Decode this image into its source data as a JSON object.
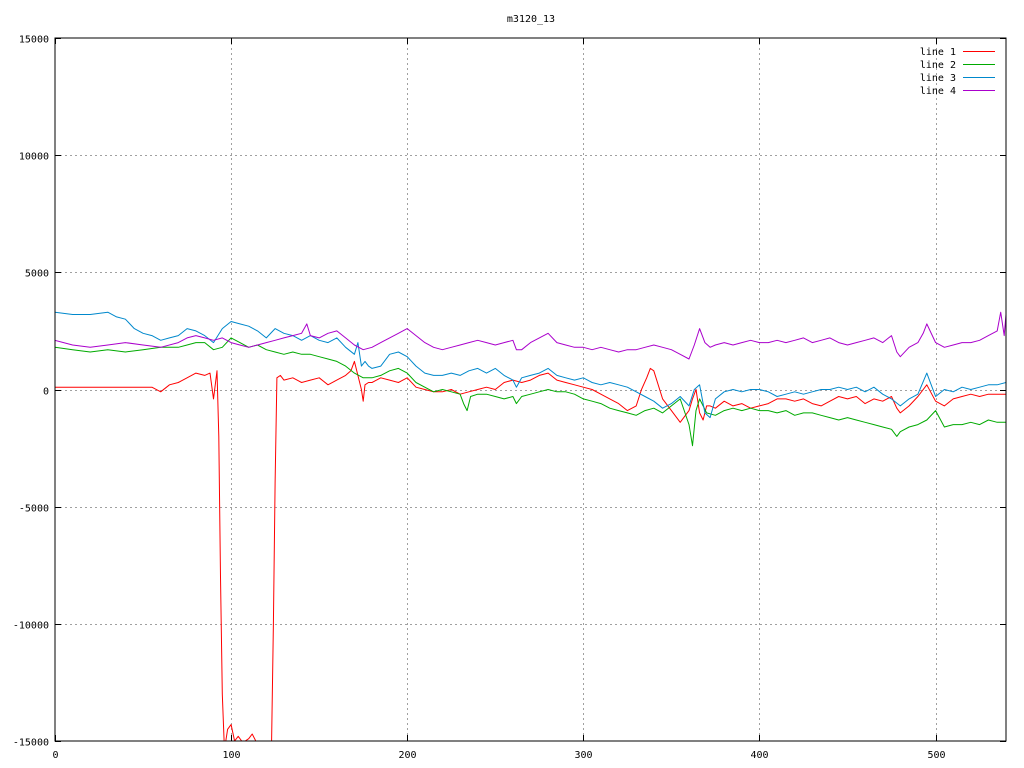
{
  "chart_data": {
    "type": "line",
    "title": "m3120_13",
    "xlabel": "",
    "ylabel": "",
    "xlim": [
      0,
      540
    ],
    "ylim": [
      -15000,
      15000
    ],
    "xticks": [
      0,
      100,
      200,
      300,
      400,
      500
    ],
    "yticks": [
      -15000,
      -10000,
      -5000,
      0,
      5000,
      10000,
      15000
    ],
    "grid": true,
    "legend_position": "top-right",
    "series": [
      {
        "name": "line 1",
        "color": "#ff0000",
        "x": [
          0,
          20,
          40,
          55,
          60,
          65,
          70,
          75,
          80,
          85,
          88,
          90,
          92,
          93,
          94,
          95,
          96,
          97,
          98,
          100,
          102,
          104,
          106,
          108,
          110,
          112,
          114,
          116,
          118,
          120,
          122,
          123,
          124,
          125,
          126,
          128,
          130,
          135,
          140,
          145,
          150,
          155,
          160,
          165,
          168,
          170,
          172,
          174,
          175,
          176,
          178,
          180,
          185,
          190,
          195,
          200,
          205,
          210,
          215,
          220,
          225,
          230,
          235,
          240,
          245,
          250,
          255,
          260,
          265,
          270,
          275,
          280,
          285,
          290,
          295,
          300,
          305,
          310,
          315,
          320,
          325,
          330,
          333,
          336,
          338,
          340,
          345,
          350,
          355,
          360,
          362,
          364,
          366,
          368,
          370,
          372,
          375,
          380,
          385,
          390,
          395,
          400,
          405,
          410,
          415,
          420,
          425,
          430,
          435,
          440,
          445,
          450,
          455,
          460,
          465,
          470,
          475,
          478,
          480,
          485,
          490,
          495,
          500,
          505,
          510,
          515,
          520,
          525,
          530,
          535,
          540
        ],
        "y": [
          100,
          100,
          100,
          100,
          -100,
          200,
          300,
          500,
          700,
          600,
          700,
          -400,
          800,
          -2000,
          -8000,
          -13000,
          -15000,
          -15000,
          -14500,
          -14300,
          -15000,
          -14800,
          -15000,
          -15000,
          -14900,
          -14700,
          -15000,
          -15000,
          -15000,
          -15000,
          -15000,
          -15000,
          -10000,
          -4000,
          500,
          600,
          400,
          500,
          300,
          400,
          500,
          200,
          400,
          600,
          800,
          1200,
          600,
          0,
          -500,
          200,
          300,
          300,
          500,
          400,
          300,
          500,
          100,
          0,
          -100,
          -100,
          0,
          -200,
          -100,
          0,
          100,
          0,
          300,
          400,
          300,
          400,
          600,
          700,
          400,
          300,
          200,
          100,
          0,
          -200,
          -400,
          -600,
          -900,
          -700,
          0,
          500,
          900,
          800,
          -400,
          -900,
          -1400,
          -900,
          -400,
          0,
          -1000,
          -1300,
          -700,
          -700,
          -800,
          -500,
          -700,
          -600,
          -800,
          -700,
          -600,
          -400,
          -400,
          -500,
          -400,
          -600,
          -700,
          -500,
          -300,
          -400,
          -300,
          -600,
          -400,
          -500,
          -300,
          -800,
          -1000,
          -700,
          -300,
          200,
          -500,
          -700,
          -400,
          -300,
          -200,
          -300,
          -200,
          -200,
          -200
        ]
      },
      {
        "name": "line 2",
        "color": "#00aa00",
        "x": [
          0,
          10,
          20,
          30,
          40,
          50,
          60,
          70,
          75,
          80,
          85,
          90,
          95,
          100,
          105,
          110,
          115,
          120,
          125,
          130,
          135,
          140,
          145,
          150,
          155,
          160,
          165,
          170,
          175,
          180,
          185,
          190,
          195,
          200,
          205,
          210,
          215,
          220,
          225,
          230,
          232,
          234,
          236,
          240,
          245,
          250,
          255,
          260,
          262,
          265,
          270,
          275,
          280,
          285,
          290,
          295,
          300,
          305,
          310,
          315,
          320,
          325,
          330,
          335,
          340,
          345,
          350,
          355,
          360,
          362,
          364,
          366,
          368,
          370,
          375,
          380,
          385,
          390,
          395,
          400,
          405,
          410,
          415,
          420,
          425,
          430,
          435,
          440,
          445,
          450,
          455,
          460,
          465,
          470,
          475,
          478,
          480,
          485,
          490,
          495,
          500,
          505,
          510,
          515,
          520,
          525,
          530,
          535,
          540
        ],
        "y": [
          1800,
          1700,
          1600,
          1700,
          1600,
          1700,
          1800,
          1800,
          1900,
          2000,
          2000,
          1700,
          1800,
          2200,
          2000,
          1800,
          1900,
          1700,
          1600,
          1500,
          1600,
          1500,
          1500,
          1400,
          1300,
          1200,
          1000,
          700,
          500,
          500,
          600,
          800,
          900,
          700,
          300,
          100,
          -100,
          0,
          -100,
          -200,
          -600,
          -900,
          -300,
          -200,
          -200,
          -300,
          -400,
          -300,
          -600,
          -300,
          -200,
          -100,
          0,
          -100,
          -100,
          -200,
          -400,
          -500,
          -600,
          -800,
          -900,
          -1000,
          -1100,
          -900,
          -800,
          -1000,
          -700,
          -400,
          -1500,
          -2400,
          -900,
          -400,
          -700,
          -1000,
          -1100,
          -900,
          -800,
          -900,
          -800,
          -900,
          -900,
          -1000,
          -900,
          -1100,
          -1000,
          -1000,
          -1100,
          -1200,
          -1300,
          -1200,
          -1300,
          -1400,
          -1500,
          -1600,
          -1700,
          -2000,
          -1800,
          -1600,
          -1500,
          -1300,
          -900,
          -1600,
          -1500,
          -1500,
          -1400,
          -1500,
          -1300,
          -1400,
          -1400
        ]
      },
      {
        "name": "line 3",
        "color": "#0088cc",
        "x": [
          0,
          10,
          20,
          30,
          35,
          40,
          45,
          50,
          55,
          60,
          65,
          70,
          75,
          80,
          85,
          90,
          95,
          100,
          105,
          110,
          115,
          120,
          125,
          130,
          135,
          140,
          145,
          150,
          155,
          160,
          165,
          170,
          172,
          174,
          176,
          178,
          180,
          185,
          190,
          195,
          200,
          205,
          210,
          215,
          220,
          225,
          230,
          235,
          240,
          245,
          250,
          255,
          260,
          262,
          265,
          270,
          275,
          280,
          285,
          290,
          295,
          300,
          305,
          310,
          315,
          320,
          325,
          330,
          335,
          340,
          345,
          350,
          355,
          360,
          363,
          366,
          369,
          372,
          375,
          380,
          385,
          390,
          395,
          400,
          405,
          410,
          415,
          420,
          425,
          430,
          435,
          440,
          445,
          450,
          455,
          460,
          465,
          470,
          475,
          480,
          485,
          490,
          495,
          500,
          505,
          510,
          515,
          520,
          525,
          530,
          535,
          540
        ],
        "y": [
          3300,
          3200,
          3200,
          3300,
          3100,
          3000,
          2600,
          2400,
          2300,
          2100,
          2200,
          2300,
          2600,
          2500,
          2300,
          2000,
          2600,
          2900,
          2800,
          2700,
          2500,
          2200,
          2600,
          2400,
          2300,
          2100,
          2300,
          2100,
          2000,
          2200,
          1800,
          1500,
          2000,
          1000,
          1200,
          1000,
          900,
          1000,
          1500,
          1600,
          1400,
          1000,
          700,
          600,
          600,
          700,
          600,
          800,
          900,
          700,
          900,
          600,
          400,
          100,
          500,
          600,
          700,
          900,
          600,
          500,
          400,
          500,
          300,
          200,
          300,
          200,
          100,
          -100,
          -300,
          -500,
          -800,
          -600,
          -300,
          -700,
          0,
          200,
          -1000,
          -1200,
          -400,
          -100,
          0,
          -100,
          0,
          0,
          -100,
          -300,
          -200,
          -100,
          -200,
          -100,
          0,
          0,
          100,
          0,
          100,
          -100,
          100,
          -200,
          -400,
          -700,
          -400,
          -200,
          700,
          -300,
          0,
          -100,
          100,
          0,
          100,
          200,
          200,
          300
        ]
      },
      {
        "name": "line 4",
        "color": "#aa00cc",
        "x": [
          0,
          10,
          20,
          30,
          40,
          50,
          60,
          70,
          75,
          80,
          85,
          90,
          95,
          100,
          105,
          110,
          115,
          120,
          125,
          130,
          135,
          140,
          143,
          145,
          150,
          155,
          160,
          165,
          170,
          175,
          180,
          185,
          190,
          195,
          200,
          205,
          210,
          215,
          220,
          225,
          230,
          235,
          240,
          245,
          250,
          255,
          260,
          262,
          265,
          270,
          275,
          280,
          285,
          290,
          295,
          300,
          305,
          310,
          315,
          320,
          325,
          330,
          335,
          340,
          345,
          350,
          355,
          360,
          363,
          366,
          369,
          372,
          375,
          380,
          385,
          390,
          395,
          400,
          405,
          410,
          415,
          420,
          425,
          430,
          435,
          440,
          445,
          450,
          455,
          460,
          465,
          470,
          475,
          478,
          480,
          485,
          490,
          493,
          495,
          500,
          505,
          510,
          515,
          520,
          525,
          530,
          535,
          537,
          539,
          540
        ],
        "y": [
          2100,
          1900,
          1800,
          1900,
          2000,
          1900,
          1800,
          2000,
          2200,
          2300,
          2200,
          2100,
          2200,
          2000,
          1900,
          1800,
          1900,
          2000,
          2100,
          2200,
          2300,
          2400,
          2800,
          2300,
          2200,
          2400,
          2500,
          2200,
          1900,
          1700,
          1800,
          2000,
          2200,
          2400,
          2600,
          2300,
          2000,
          1800,
          1700,
          1800,
          1900,
          2000,
          2100,
          2000,
          1900,
          2000,
          2100,
          1700,
          1700,
          2000,
          2200,
          2400,
          2000,
          1900,
          1800,
          1800,
          1700,
          1800,
          1700,
          1600,
          1700,
          1700,
          1800,
          1900,
          1800,
          1700,
          1500,
          1300,
          1900,
          2600,
          2000,
          1800,
          1900,
          2000,
          1900,
          2000,
          2100,
          2000,
          2000,
          2100,
          2000,
          2100,
          2200,
          2000,
          2100,
          2200,
          2000,
          1900,
          2000,
          2100,
          2200,
          2000,
          2300,
          1600,
          1400,
          1800,
          2000,
          2400,
          2800,
          2000,
          1800,
          1900,
          2000,
          2000,
          2100,
          2300,
          2500,
          3300,
          2300,
          3200
        ]
      }
    ]
  }
}
